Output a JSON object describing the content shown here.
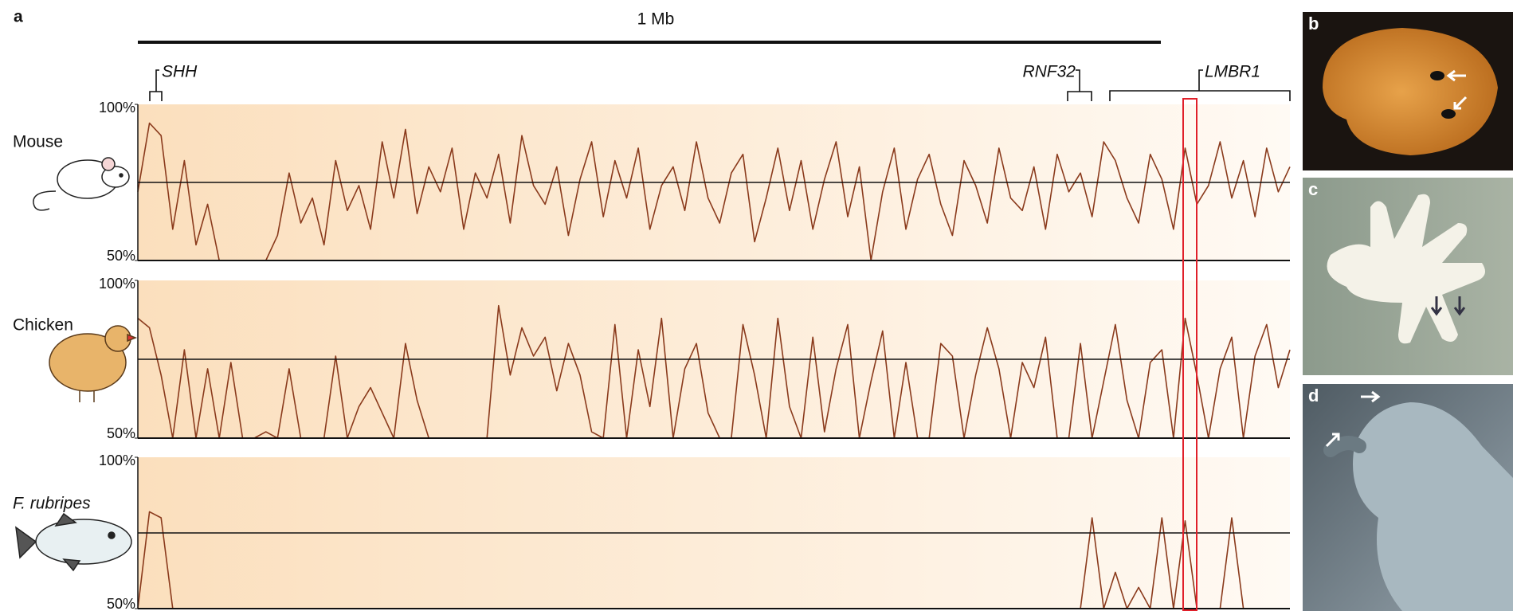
{
  "panel_label": "a",
  "scale_bar": "1 Mb",
  "genes": [
    "SHH",
    "RNF32",
    "LMBR1"
  ],
  "photo_panels": [
    "b",
    "c",
    "d"
  ],
  "chart_data": [
    {
      "type": "line",
      "name": "Mouse",
      "color": "#8a3a1c",
      "ylim": [
        50,
        100
      ],
      "hline": 75,
      "yticks": [
        {
          "value": 100,
          "label": "100%"
        },
        {
          "value": 50,
          "label": "50%"
        }
      ],
      "values": [
        72,
        94,
        90,
        60,
        82,
        55,
        68,
        50,
        50,
        50,
        50,
        50,
        58,
        78,
        62,
        70,
        55,
        82,
        66,
        74,
        60,
        88,
        70,
        92,
        65,
        80,
        72,
        86,
        60,
        78,
        70,
        84,
        62,
        90,
        74,
        68,
        80,
        58,
        76,
        88,
        64,
        82,
        70,
        86,
        60,
        74,
        80,
        66,
        88,
        70,
        62,
        78,
        84,
        56,
        70,
        86,
        66,
        82,
        60,
        76,
        88,
        64,
        80,
        50,
        72,
        86,
        60,
        76,
        84,
        68,
        58,
        82,
        74,
        62,
        86,
        70,
        66,
        80,
        60,
        84,
        72,
        78,
        64,
        88,
        82,
        70,
        62,
        84,
        76,
        60,
        86,
        68,
        74,
        88,
        70,
        82,
        64,
        86,
        72,
        80
      ]
    },
    {
      "type": "line",
      "name": "Chicken",
      "color": "#8a3a1c",
      "ylim": [
        50,
        100
      ],
      "hline": 75,
      "yticks": [
        {
          "value": 100,
          "label": "100%"
        },
        {
          "value": 50,
          "label": "50%"
        }
      ],
      "values": [
        88,
        85,
        70,
        50,
        78,
        50,
        72,
        50,
        74,
        50,
        50,
        52,
        50,
        72,
        50,
        50,
        50,
        76,
        50,
        60,
        66,
        58,
        50,
        80,
        62,
        50,
        50,
        50,
        50,
        50,
        50,
        92,
        70,
        85,
        76,
        82,
        65,
        80,
        70,
        52,
        50,
        86,
        50,
        78,
        60,
        88,
        50,
        72,
        80,
        58,
        50,
        50,
        86,
        70,
        50,
        88,
        60,
        50,
        82,
        52,
        72,
        86,
        50,
        68,
        84,
        50,
        74,
        50,
        50,
        80,
        76,
        50,
        70,
        85,
        72,
        50,
        74,
        66,
        82,
        50,
        50,
        80,
        50,
        68,
        86,
        62,
        50,
        74,
        78,
        50,
        88,
        70,
        50,
        72,
        82,
        50,
        76,
        86,
        66,
        78
      ]
    },
    {
      "type": "line",
      "name": "F. rubripes",
      "color": "#8a3a1c",
      "ylim": [
        50,
        100
      ],
      "hline": 75,
      "yticks": [
        {
          "value": 100,
          "label": "100%"
        },
        {
          "value": 50,
          "label": "50%"
        }
      ],
      "values": [
        50,
        82,
        80,
        50,
        50,
        50,
        50,
        50,
        50,
        50,
        50,
        50,
        50,
        50,
        50,
        50,
        50,
        50,
        50,
        50,
        50,
        50,
        50,
        50,
        50,
        50,
        50,
        50,
        50,
        50,
        50,
        50,
        50,
        50,
        50,
        50,
        50,
        50,
        50,
        50,
        50,
        50,
        50,
        50,
        50,
        50,
        50,
        50,
        50,
        50,
        50,
        50,
        50,
        50,
        50,
        50,
        50,
        50,
        50,
        50,
        50,
        50,
        50,
        50,
        50,
        50,
        50,
        50,
        50,
        50,
        50,
        50,
        50,
        50,
        50,
        50,
        50,
        50,
        50,
        50,
        50,
        50,
        80,
        50,
        62,
        50,
        57,
        50,
        80,
        50,
        79,
        50,
        50,
        50,
        80,
        50,
        50,
        50,
        50,
        50
      ]
    }
  ]
}
